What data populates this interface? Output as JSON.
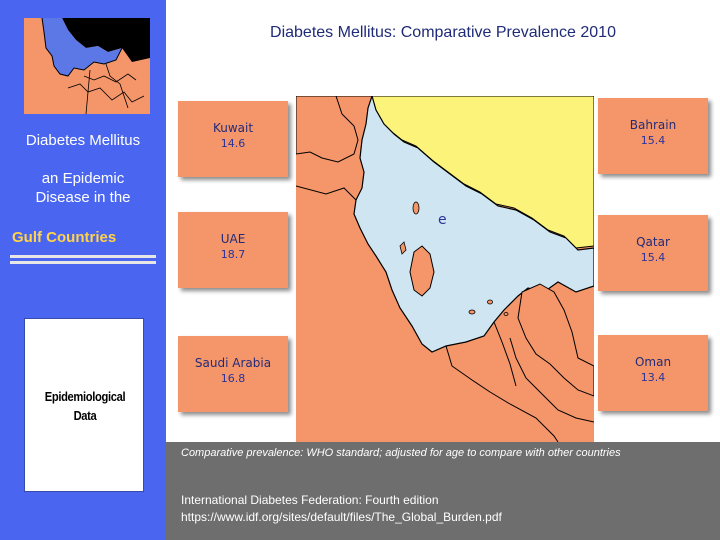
{
  "slide_title": "Diabetes Mellitus:  Comparative Prevalence 2010",
  "sidebar": {
    "line1": "Diabetes Mellitus",
    "line2": "an Epidemic",
    "line3": "Disease  in  the",
    "region": "Gulf  Countries",
    "box_line1": "Epidemiological",
    "box_line2": "Data"
  },
  "map_marker": "e",
  "countries": [
    {
      "name": "Kuwait",
      "value": "14.6"
    },
    {
      "name": "Bahrain",
      "value": "15.4"
    },
    {
      "name": "UAE",
      "value": "18.7"
    },
    {
      "name": "Qatar",
      "value": "15.4"
    },
    {
      "name": "Saudi Arabia",
      "value": "16.8"
    },
    {
      "name": "Oman",
      "value": "13.4"
    }
  ],
  "footnote": "Comparative prevalence: WHO standard; adjusted for age to compare with other countries",
  "source": {
    "line1": "International Diabetes Federation: Fourth edition",
    "line2": "https://www.idf.org/sites/default/files/The_Global_Burden.pdf"
  },
  "colors": {
    "sidebar_blue": "#4a66f0",
    "land_orange": "#f4966a",
    "sea_blue": "#cfe6f2",
    "yellow_land": "#fbf37a",
    "title_navy": "#1f2a78",
    "gulf_label": "#ffd34a",
    "band_gray": "#6e6e6e"
  }
}
